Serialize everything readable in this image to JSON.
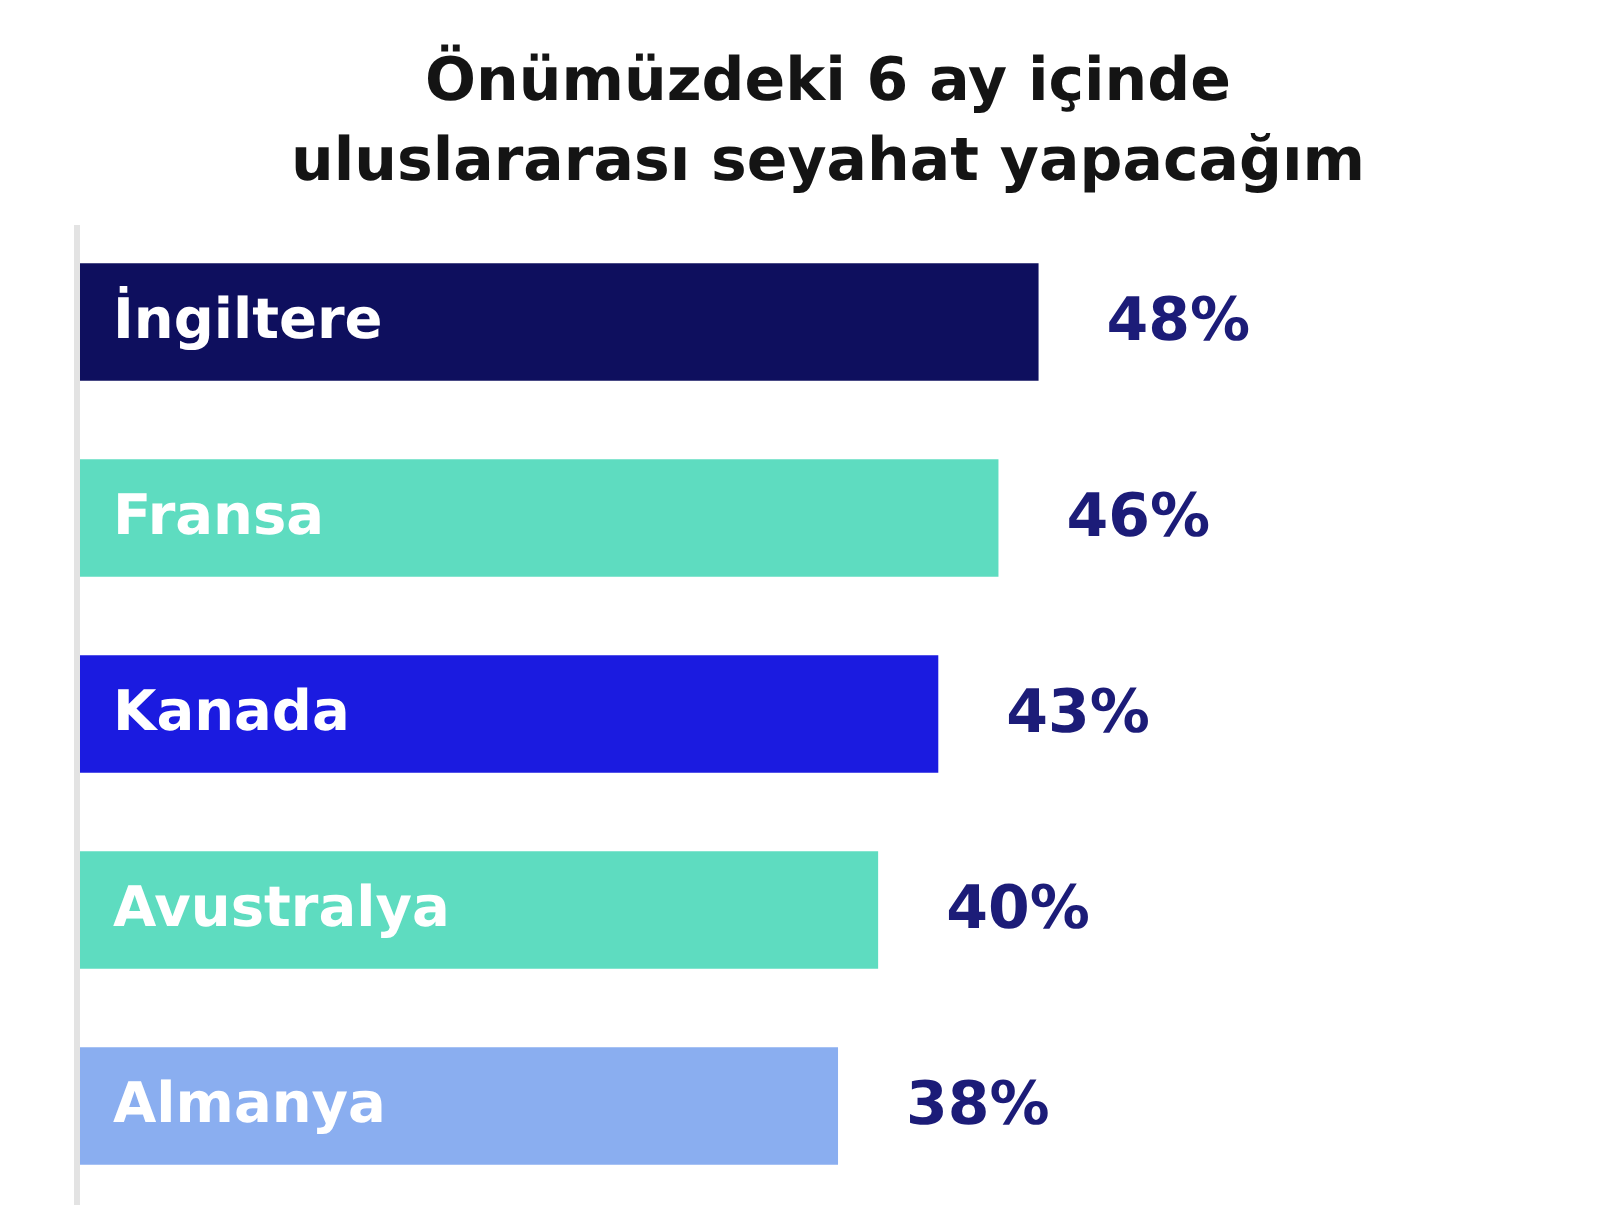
{
  "chart_data": {
    "type": "bar",
    "orientation": "horizontal",
    "title": "Önümüzdeki 6 ay içinde\nuluslararası seyahat yapacağım",
    "categories": [
      "İngiltere",
      "Fransa",
      "Kanada",
      "Avustralya",
      "Almanya"
    ],
    "values": [
      48,
      46,
      43,
      40,
      38
    ],
    "colors": [
      "#0e0f5e",
      "#5edcc0",
      "#1b1be0",
      "#5edcc0",
      "#8aaef0"
    ],
    "value_labels": [
      "48%",
      "46%",
      "43%",
      "40%",
      "38%"
    ]
  }
}
